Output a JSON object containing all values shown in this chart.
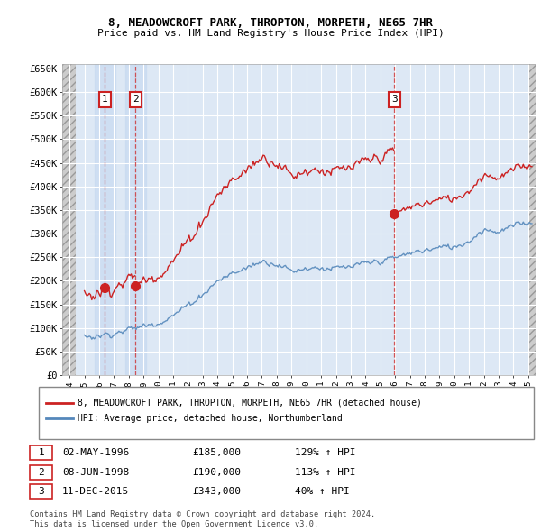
{
  "title_line1": "8, MEADOWCROFT PARK, THROPTON, MORPETH, NE65 7HR",
  "title_line2": "Price paid vs. HM Land Registry's House Price Index (HPI)",
  "ylim": [
    0,
    660000
  ],
  "yticks": [
    0,
    50000,
    100000,
    150000,
    200000,
    250000,
    300000,
    350000,
    400000,
    450000,
    500000,
    550000,
    600000,
    650000
  ],
  "ytick_labels": [
    "£0",
    "£50K",
    "£100K",
    "£150K",
    "£200K",
    "£250K",
    "£300K",
    "£350K",
    "£400K",
    "£450K",
    "£500K",
    "£550K",
    "£600K",
    "£650K"
  ],
  "hpi_color": "#5588bb",
  "price_color": "#cc2222",
  "plot_bg_color": "#dde8f5",
  "grid_color": "#ffffff",
  "sale_dates": [
    1996.37,
    1998.44,
    2015.95
  ],
  "sale_prices": [
    185000,
    190000,
    343000
  ],
  "sale_labels": [
    "1",
    "2",
    "3"
  ],
  "legend_label_red": "8, MEADOWCROFT PARK, THROPTON, MORPETH, NE65 7HR (detached house)",
  "legend_label_blue": "HPI: Average price, detached house, Northumberland",
  "table_entries": [
    {
      "num": "1",
      "date": "02-MAY-1996",
      "price": "£185,000",
      "hpi": "129% ↑ HPI"
    },
    {
      "num": "2",
      "date": "08-JUN-1998",
      "price": "£190,000",
      "hpi": "113% ↑ HPI"
    },
    {
      "num": "3",
      "date": "11-DEC-2015",
      "price": "£343,000",
      "hpi": "40% ↑ HPI"
    }
  ],
  "footer": "Contains HM Land Registry data © Crown copyright and database right 2024.\nThis data is licensed under the Open Government Licence v3.0.",
  "xlim_left": 1993.5,
  "xlim_right": 2025.5,
  "xticks": [
    1994,
    1995,
    1996,
    1997,
    1998,
    1999,
    2000,
    2001,
    2002,
    2003,
    2004,
    2005,
    2006,
    2007,
    2008,
    2009,
    2010,
    2011,
    2012,
    2013,
    2014,
    2015,
    2016,
    2017,
    2018,
    2019,
    2020,
    2021,
    2022,
    2023,
    2024,
    2025
  ]
}
